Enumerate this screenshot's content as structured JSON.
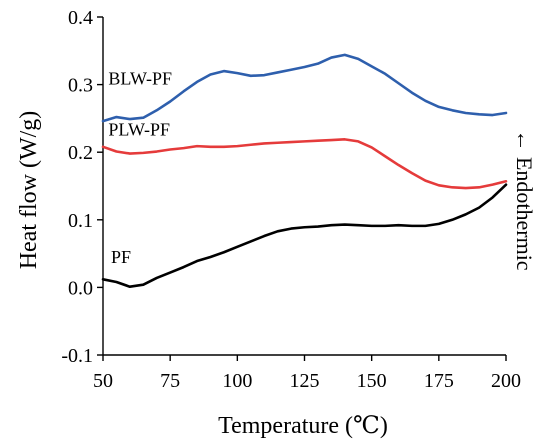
{
  "chart_data": {
    "type": "line",
    "title": "",
    "xlabel": "Temperature (℃)",
    "ylabel": "Heat flow (W/g)",
    "side_annotation": "← Endothermic",
    "xlim": [
      50,
      200
    ],
    "ylim": [
      -0.1,
      0.4
    ],
    "x_ticks": [
      "50",
      "75",
      "100",
      "125",
      "150",
      "175",
      "200"
    ],
    "y_ticks": [
      "-0.1",
      "0.0",
      "0.1",
      "0.2",
      "0.3",
      "0.4"
    ],
    "grid": false,
    "legend": "inline labels",
    "series": [
      {
        "name": "BLW-PF",
        "color": "#2e5fad",
        "x": [
          50,
          55,
          60,
          65,
          70,
          75,
          80,
          85,
          90,
          95,
          100,
          105,
          110,
          115,
          120,
          125,
          130,
          135,
          140,
          145,
          150,
          155,
          160,
          165,
          170,
          175,
          180,
          185,
          190,
          195,
          200
        ],
        "y": [
          0.246,
          0.252,
          0.249,
          0.251,
          0.262,
          0.275,
          0.29,
          0.304,
          0.315,
          0.32,
          0.317,
          0.313,
          0.314,
          0.318,
          0.322,
          0.326,
          0.331,
          0.34,
          0.344,
          0.338,
          0.327,
          0.316,
          0.302,
          0.288,
          0.276,
          0.267,
          0.262,
          0.258,
          0.256,
          0.255,
          0.258
        ]
      },
      {
        "name": "PLW-PF",
        "color": "#e53b3b",
        "x": [
          50,
          55,
          60,
          65,
          70,
          75,
          80,
          85,
          90,
          95,
          100,
          105,
          110,
          115,
          120,
          125,
          130,
          135,
          140,
          145,
          150,
          155,
          160,
          165,
          170,
          175,
          180,
          185,
          190,
          195,
          200
        ],
        "y": [
          0.208,
          0.201,
          0.198,
          0.199,
          0.201,
          0.204,
          0.206,
          0.209,
          0.208,
          0.208,
          0.209,
          0.211,
          0.213,
          0.214,
          0.215,
          0.216,
          0.217,
          0.218,
          0.219,
          0.216,
          0.207,
          0.194,
          0.181,
          0.169,
          0.158,
          0.151,
          0.148,
          0.147,
          0.148,
          0.152,
          0.157
        ]
      },
      {
        "name": "PF",
        "color": "#000000",
        "x": [
          50,
          55,
          60,
          65,
          70,
          75,
          80,
          85,
          90,
          95,
          100,
          105,
          110,
          115,
          120,
          125,
          130,
          135,
          140,
          145,
          150,
          155,
          160,
          165,
          170,
          175,
          180,
          185,
          190,
          195,
          200
        ],
        "y": [
          0.012,
          0.008,
          0.001,
          0.004,
          0.014,
          0.022,
          0.03,
          0.039,
          0.045,
          0.052,
          0.06,
          0.068,
          0.076,
          0.083,
          0.087,
          0.089,
          0.09,
          0.092,
          0.093,
          0.092,
          0.091,
          0.091,
          0.092,
          0.091,
          0.091,
          0.094,
          0.1,
          0.108,
          0.118,
          0.133,
          0.152
        ]
      }
    ],
    "series_labels": [
      {
        "text": "BLW-PF",
        "x": 52,
        "y": 0.3
      },
      {
        "text": "PLW-PF",
        "x": 52,
        "y": 0.225
      },
      {
        "text": "PF",
        "x": 53,
        "y": 0.036
      }
    ]
  }
}
